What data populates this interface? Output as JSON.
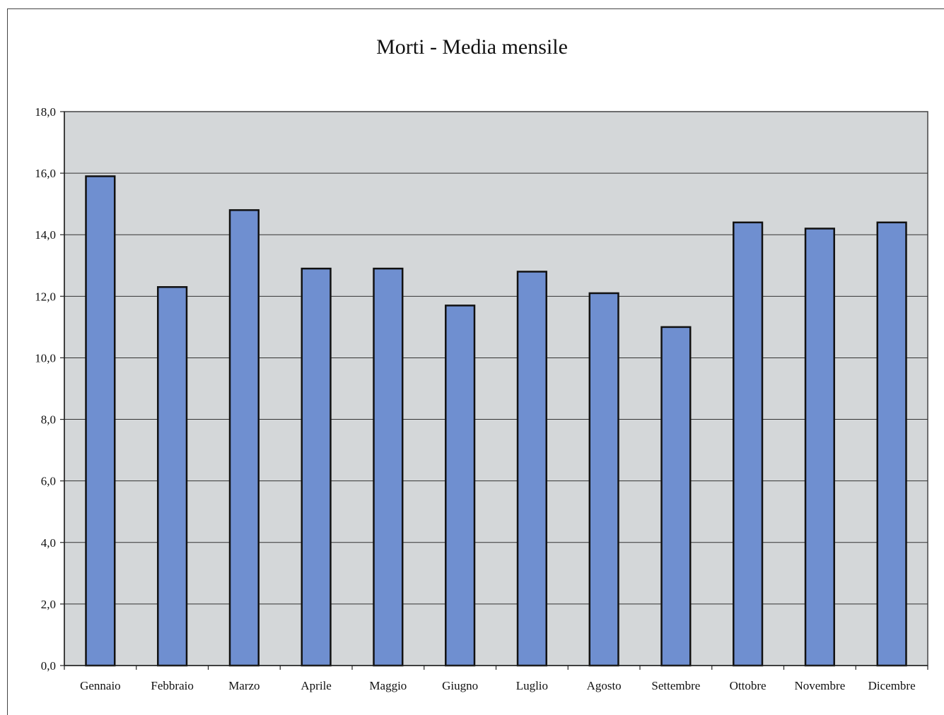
{
  "chart_data": {
    "type": "bar",
    "title": "Morti - Media mensile",
    "xlabel": "",
    "ylabel": "",
    "categories": [
      "Gennaio",
      "Febbraio",
      "Marzo",
      "Aprile",
      "Maggio",
      "Giugno",
      "Luglio",
      "Agosto",
      "Settembre",
      "Ottobre",
      "Novembre",
      "Dicembre"
    ],
    "values": [
      15.9,
      12.3,
      14.8,
      12.9,
      12.9,
      11.7,
      12.8,
      12.1,
      11.0,
      14.4,
      14.2,
      14.4
    ],
    "ylim": [
      0,
      18
    ],
    "yticks": [
      "0,0",
      "2,0",
      "4,0",
      "6,0",
      "8,0",
      "10,0",
      "12,0",
      "14,0",
      "16,0",
      "18,0"
    ],
    "grid": true,
    "colors": {
      "bar": "#6f8fd0",
      "bar_edge": "#111111",
      "plot_bg": "#d4d7d9",
      "gridline": "#333333"
    }
  }
}
